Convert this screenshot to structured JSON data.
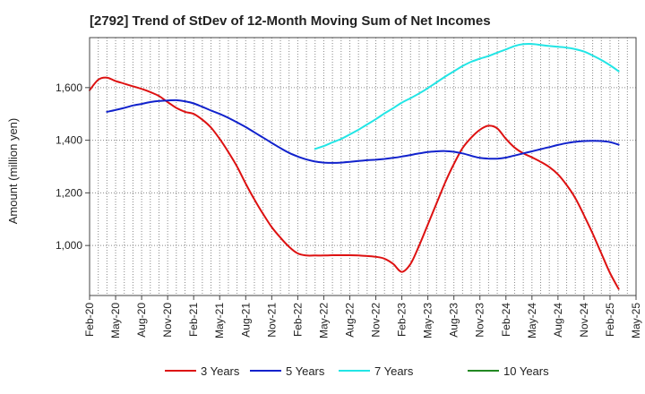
{
  "chart_data": {
    "type": "line",
    "title": "[2792]  Trend of StDev of 12-Month Moving Sum of Net Incomes",
    "ylabel": "Amount (million yen)",
    "xlabel": "",
    "x_start": "Feb-20",
    "x_end": "May-25",
    "x_ticks": [
      "Feb-20",
      "May-20",
      "Aug-20",
      "Nov-20",
      "Feb-21",
      "May-21",
      "Aug-21",
      "Nov-21",
      "Feb-22",
      "May-22",
      "Aug-22",
      "Nov-22",
      "Feb-23",
      "May-23",
      "Aug-23",
      "Nov-23",
      "Feb-24",
      "May-24",
      "Aug-24",
      "Nov-24",
      "Feb-25",
      "May-25"
    ],
    "ylim": [
      810,
      1790
    ],
    "y_ticks": [
      1000,
      1200,
      1400,
      1600
    ],
    "y_tick_labels": [
      "1,000",
      "1,200",
      "1,400",
      "1,600"
    ],
    "grid": "vertical dotted",
    "legend_position": "bottom",
    "series": [
      {
        "name": "3 Years",
        "color": "#dd1111",
        "points": [
          [
            "Feb-20",
            1590
          ],
          [
            "Mar-20",
            1630
          ],
          [
            "Apr-20",
            1638
          ],
          [
            "May-20",
            1625
          ],
          [
            "Jun-20",
            1615
          ],
          [
            "Jul-20",
            1605
          ],
          [
            "Aug-20",
            1595
          ],
          [
            "Sep-20",
            1583
          ],
          [
            "Oct-20",
            1568
          ],
          [
            "Nov-20",
            1545
          ],
          [
            "Dec-20",
            1523
          ],
          [
            "Jan-21",
            1508
          ],
          [
            "Feb-21",
            1500
          ],
          [
            "Mar-21",
            1478
          ],
          [
            "Apr-21",
            1448
          ],
          [
            "May-21",
            1405
          ],
          [
            "Jun-21",
            1355
          ],
          [
            "Jul-21",
            1300
          ],
          [
            "Aug-21",
            1235
          ],
          [
            "Sep-21",
            1175
          ],
          [
            "Oct-21",
            1120
          ],
          [
            "Nov-21",
            1070
          ],
          [
            "Dec-21",
            1030
          ],
          [
            "Jan-22",
            995
          ],
          [
            "Feb-22",
            970
          ],
          [
            "Mar-22",
            962
          ],
          [
            "Apr-22",
            962
          ],
          [
            "May-22",
            962
          ],
          [
            "Jun-22",
            963
          ],
          [
            "Jul-22",
            963
          ],
          [
            "Aug-22",
            963
          ],
          [
            "Sep-22",
            962
          ],
          [
            "Oct-22",
            960
          ],
          [
            "Nov-22",
            957
          ],
          [
            "Dec-22",
            950
          ],
          [
            "Jan-23",
            930
          ],
          [
            "Feb-23",
            900
          ],
          [
            "Mar-23",
            930
          ],
          [
            "Apr-23",
            1000
          ],
          [
            "May-23",
            1080
          ],
          [
            "Jun-23",
            1160
          ],
          [
            "Jul-23",
            1240
          ],
          [
            "Aug-23",
            1310
          ],
          [
            "Sep-23",
            1370
          ],
          [
            "Oct-23",
            1410
          ],
          [
            "Nov-23",
            1440
          ],
          [
            "Dec-23",
            1455
          ],
          [
            "Jan-24",
            1445
          ],
          [
            "Feb-24",
            1405
          ],
          [
            "Mar-24",
            1372
          ],
          [
            "Apr-24",
            1350
          ],
          [
            "May-24",
            1335
          ],
          [
            "Jun-24",
            1318
          ],
          [
            "Jul-24",
            1298
          ],
          [
            "Aug-24",
            1270
          ],
          [
            "Sep-24",
            1230
          ],
          [
            "Oct-24",
            1180
          ],
          [
            "Nov-24",
            1115
          ],
          [
            "Dec-24",
            1045
          ],
          [
            "Jan-25",
            970
          ],
          [
            "Feb-25",
            895
          ],
          [
            "Mar-25",
            835
          ]
        ]
      },
      {
        "name": "5 Years",
        "color": "#1122cc",
        "points": [
          [
            "Apr-20",
            1508
          ],
          [
            "May-20",
            1515
          ],
          [
            "Jun-20",
            1523
          ],
          [
            "Jul-20",
            1532
          ],
          [
            "Aug-20",
            1538
          ],
          [
            "Sep-20",
            1545
          ],
          [
            "Oct-20",
            1549
          ],
          [
            "Nov-20",
            1551
          ],
          [
            "Dec-20",
            1552
          ],
          [
            "Jan-21",
            1548
          ],
          [
            "Feb-21",
            1540
          ],
          [
            "Mar-21",
            1527
          ],
          [
            "Apr-21",
            1513
          ],
          [
            "May-21",
            1500
          ],
          [
            "Jun-21",
            1485
          ],
          [
            "Jul-21",
            1468
          ],
          [
            "Aug-21",
            1450
          ],
          [
            "Sep-21",
            1430
          ],
          [
            "Oct-21",
            1410
          ],
          [
            "Nov-21",
            1390
          ],
          [
            "Dec-21",
            1370
          ],
          [
            "Jan-22",
            1352
          ],
          [
            "Feb-22",
            1338
          ],
          [
            "Mar-22",
            1327
          ],
          [
            "Apr-22",
            1319
          ],
          [
            "May-22",
            1315
          ],
          [
            "Jun-22",
            1314
          ],
          [
            "Jul-22",
            1315
          ],
          [
            "Aug-22",
            1318
          ],
          [
            "Sep-22",
            1321
          ],
          [
            "Oct-22",
            1324
          ],
          [
            "Nov-22",
            1326
          ],
          [
            "Dec-22",
            1329
          ],
          [
            "Jan-23",
            1333
          ],
          [
            "Feb-23",
            1338
          ],
          [
            "Mar-23",
            1344
          ],
          [
            "Apr-23",
            1350
          ],
          [
            "May-23",
            1355
          ],
          [
            "Jun-23",
            1358
          ],
          [
            "Jul-23",
            1359
          ],
          [
            "Aug-23",
            1356
          ],
          [
            "Sep-23",
            1350
          ],
          [
            "Oct-23",
            1341
          ],
          [
            "Nov-23",
            1333
          ],
          [
            "Dec-23",
            1330
          ],
          [
            "Jan-24",
            1330
          ],
          [
            "Feb-24",
            1334
          ],
          [
            "Mar-24",
            1342
          ],
          [
            "Apr-24",
            1350
          ],
          [
            "May-24",
            1358
          ],
          [
            "Jun-24",
            1366
          ],
          [
            "Jul-24",
            1374
          ],
          [
            "Aug-24",
            1382
          ],
          [
            "Sep-24",
            1389
          ],
          [
            "Oct-24",
            1394
          ],
          [
            "Nov-24",
            1397
          ],
          [
            "Dec-24",
            1398
          ],
          [
            "Jan-25",
            1397
          ],
          [
            "Feb-25",
            1393
          ],
          [
            "Mar-25",
            1383
          ]
        ]
      },
      {
        "name": "7 Years",
        "color": "#22e5e5",
        "points": [
          [
            "Apr-22",
            1367
          ],
          [
            "May-22",
            1378
          ],
          [
            "Jun-22",
            1392
          ],
          [
            "Jul-22",
            1405
          ],
          [
            "Aug-22",
            1422
          ],
          [
            "Sep-22",
            1440
          ],
          [
            "Oct-22",
            1460
          ],
          [
            "Nov-22",
            1480
          ],
          [
            "Dec-22",
            1502
          ],
          [
            "Jan-23",
            1522
          ],
          [
            "Feb-23",
            1543
          ],
          [
            "Mar-23",
            1560
          ],
          [
            "Apr-23",
            1578
          ],
          [
            "May-23",
            1598
          ],
          [
            "Jun-23",
            1620
          ],
          [
            "Jul-23",
            1642
          ],
          [
            "Aug-23",
            1662
          ],
          [
            "Sep-23",
            1682
          ],
          [
            "Oct-23",
            1698
          ],
          [
            "Nov-23",
            1710
          ],
          [
            "Dec-23",
            1720
          ],
          [
            "Jan-24",
            1733
          ],
          [
            "Feb-24",
            1745
          ],
          [
            "Mar-24",
            1758
          ],
          [
            "Apr-24",
            1765
          ],
          [
            "May-24",
            1766
          ],
          [
            "Jun-24",
            1762
          ],
          [
            "Jul-24",
            1758
          ],
          [
            "Aug-24",
            1755
          ],
          [
            "Sep-24",
            1752
          ],
          [
            "Oct-24",
            1746
          ],
          [
            "Nov-24",
            1737
          ],
          [
            "Dec-24",
            1722
          ],
          [
            "Jan-25",
            1705
          ],
          [
            "Feb-25",
            1685
          ],
          [
            "Mar-25",
            1662
          ]
        ]
      },
      {
        "name": "10 Years",
        "color": "#228822",
        "points": []
      }
    ]
  }
}
